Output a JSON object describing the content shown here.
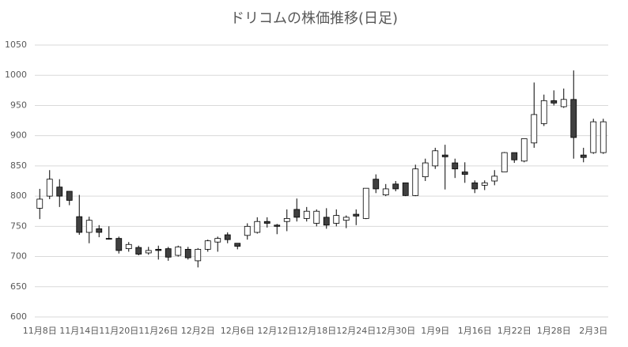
{
  "chart_data": {
    "type": "candlestick",
    "title": "ドリコムの株価推移(日足)",
    "categories": [
      "11月8日",
      null,
      null,
      null,
      "11月14日",
      null,
      null,
      null,
      "11月20日",
      null,
      null,
      null,
      "11月26日",
      null,
      null,
      null,
      "12月2日",
      null,
      null,
      null,
      "12月6日",
      null,
      null,
      null,
      "12月12日",
      null,
      null,
      null,
      "12月18日",
      null,
      null,
      null,
      "12月24日",
      null,
      null,
      null,
      "12月30日",
      null,
      null,
      null,
      "1月9日",
      null,
      null,
      null,
      "1月16日",
      null,
      null,
      null,
      "1月22日",
      null,
      null,
      null,
      "1月28日",
      null,
      null,
      null,
      "2月3日",
      null
    ],
    "open": [
      780,
      800,
      815,
      808,
      766,
      740,
      746,
      730,
      730,
      713,
      715,
      706,
      712,
      713,
      702,
      712,
      693,
      712,
      724,
      736,
      722,
      735,
      740,
      758,
      752,
      758,
      778,
      763,
      755,
      765,
      755,
      760,
      770,
      763,
      828,
      802,
      820,
      822,
      801,
      832,
      850,
      868,
      855,
      840,
      822,
      818,
      825,
      840,
      872,
      858,
      888,
      920,
      958,
      948,
      960,
      868,
      872,
      872
    ],
    "high": [
      812,
      843,
      828,
      808,
      802,
      766,
      752,
      750,
      733,
      724,
      718,
      716,
      718,
      716,
      718,
      716,
      714,
      728,
      733,
      740,
      722,
      755,
      765,
      765,
      754,
      778,
      796,
      782,
      778,
      780,
      778,
      768,
      778,
      813,
      836,
      820,
      825,
      822,
      852,
      862,
      880,
      885,
      862,
      856,
      826,
      826,
      843,
      873,
      872,
      895,
      988,
      968,
      975,
      978,
      1008,
      880,
      928,
      928
    ],
    "low": [
      762,
      795,
      782,
      785,
      736,
      722,
      732,
      728,
      705,
      708,
      702,
      703,
      695,
      693,
      700,
      695,
      682,
      708,
      708,
      722,
      712,
      728,
      738,
      748,
      737,
      742,
      758,
      758,
      750,
      746,
      750,
      747,
      752,
      762,
      805,
      800,
      808,
      800,
      800,
      825,
      845,
      811,
      830,
      822,
      805,
      810,
      818,
      840,
      855,
      856,
      880,
      916,
      950,
      946,
      862,
      856,
      870,
      870
    ],
    "close": [
      795,
      828,
      800,
      793,
      740,
      760,
      740,
      729,
      710,
      720,
      704,
      710,
      710,
      699,
      716,
      698,
      712,
      726,
      730,
      728,
      717,
      750,
      758,
      755,
      750,
      763,
      765,
      775,
      775,
      752,
      768,
      765,
      767,
      813,
      812,
      812,
      812,
      801,
      845,
      855,
      875,
      865,
      845,
      836,
      812,
      822,
      833,
      872,
      860,
      895,
      935,
      958,
      954,
      960,
      897,
      864,
      923,
      923
    ],
    "up_color": "#ffffff",
    "down_color": "#404040",
    "edge_color": "#000000",
    "ylim": [
      600,
      1050
    ],
    "yticks": [
      600,
      650,
      700,
      750,
      800,
      850,
      900,
      950,
      1000,
      1050
    ],
    "grid": true
  }
}
